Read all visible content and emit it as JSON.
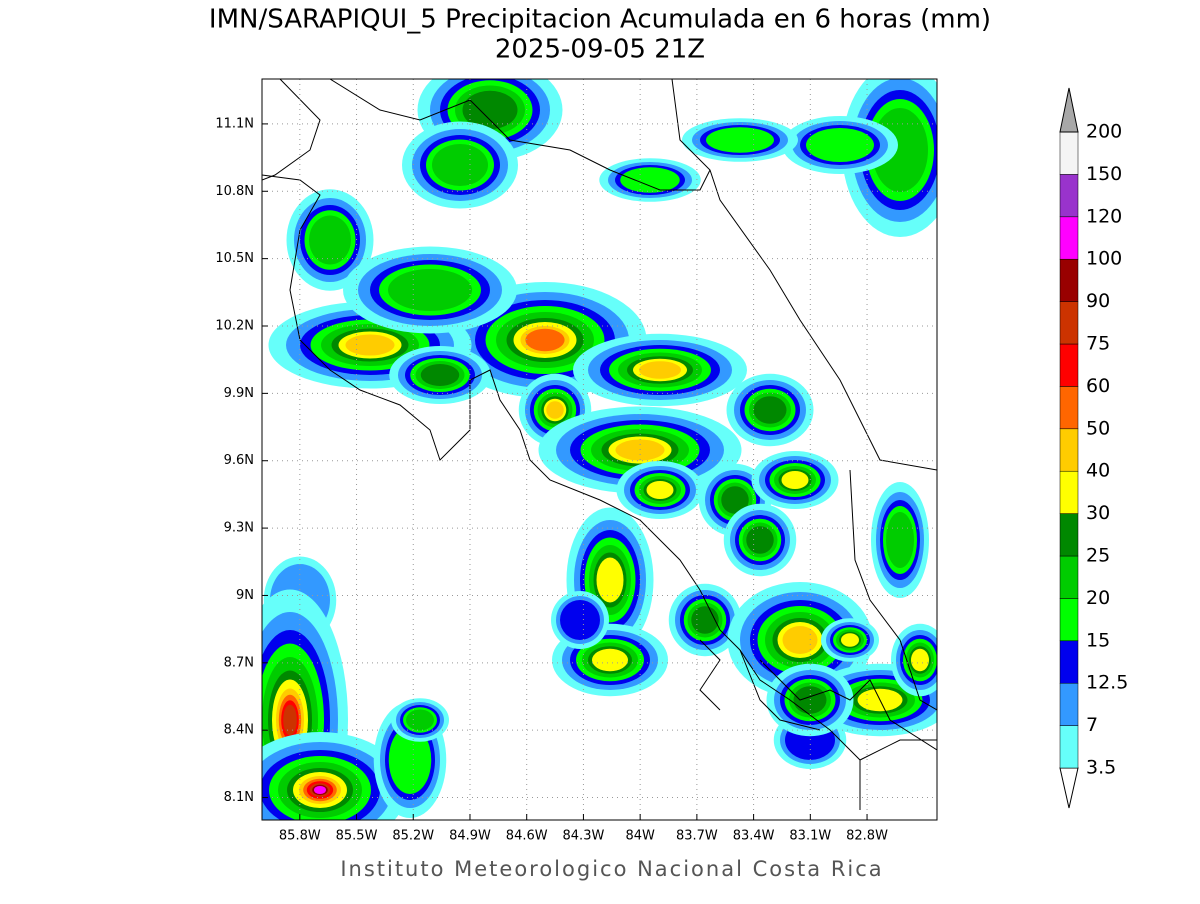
{
  "map": {
    "title": "IMN/SARAPIQUI_5 Precipitacion Acumulada en 6 horas (mm)",
    "subtitle": "2025-09-05 21Z",
    "footer": "Instituto Meteorologico Nacional Costa Rica",
    "xlim": [
      -86.0,
      -82.43
    ],
    "ylim": [
      8.0,
      11.3
    ],
    "xticks": [
      {
        "value": -85.8,
        "label": "85.8W"
      },
      {
        "value": -85.5,
        "label": "85.5W"
      },
      {
        "value": -85.2,
        "label": "85.2W"
      },
      {
        "value": -84.9,
        "label": "84.9W"
      },
      {
        "value": -84.6,
        "label": "84.6W"
      },
      {
        "value": -84.3,
        "label": "84.3W"
      },
      {
        "value": -84.0,
        "label": "84W"
      },
      {
        "value": -83.7,
        "label": "83.7W"
      },
      {
        "value": -83.4,
        "label": "83.4W"
      },
      {
        "value": -83.1,
        "label": "83.1W"
      },
      {
        "value": -82.8,
        "label": "82.8W"
      }
    ],
    "yticks": [
      {
        "value": 8.1,
        "label": "8.1N"
      },
      {
        "value": 8.4,
        "label": "8.4N"
      },
      {
        "value": 8.7,
        "label": "8.7N"
      },
      {
        "value": 9.0,
        "label": "9N"
      },
      {
        "value": 9.3,
        "label": "9.3N"
      },
      {
        "value": 9.6,
        "label": "9.6N"
      },
      {
        "value": 9.9,
        "label": "9.9N"
      },
      {
        "value": 10.2,
        "label": "10.2N"
      },
      {
        "value": 10.5,
        "label": "10.5N"
      },
      {
        "value": 10.8,
        "label": "10.8N"
      },
      {
        "value": 11.1,
        "label": "11.1N"
      }
    ],
    "grid": true,
    "colorbar": {
      "levels": [
        3.5,
        7,
        12.5,
        15,
        20,
        25,
        30,
        40,
        50,
        60,
        75,
        90,
        100,
        120,
        150,
        200
      ],
      "colors": [
        "#ffffff",
        "#66fffa",
        "#3399ff",
        "#0000ee",
        "#00ff00",
        "#00cc00",
        "#008800",
        "#ffff00",
        "#ffcc00",
        "#ff6600",
        "#ff0000",
        "#cc3300",
        "#990000",
        "#ff00ff",
        "#9933cc",
        "#f4f4f4",
        "#a8a8a8"
      ]
    }
  }
}
